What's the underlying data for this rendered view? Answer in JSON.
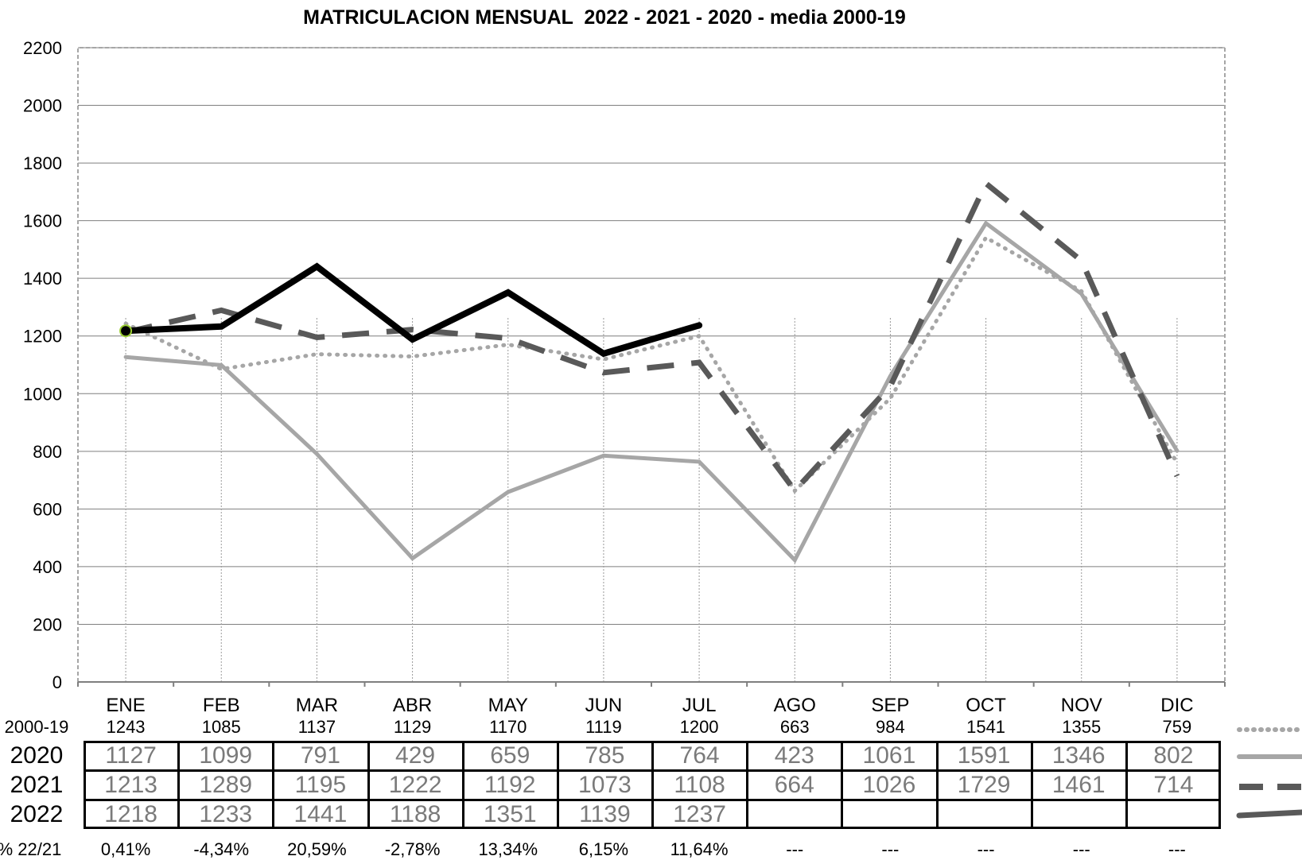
{
  "chart_data": {
    "type": "line",
    "title": "MATRICULACION MENSUAL  2022 - 2021 - 2020 - media 2000-19",
    "xlabel": "",
    "ylabel": "",
    "ylim": [
      0,
      2200
    ],
    "yticks": [
      "0",
      "200",
      "400",
      "600",
      "800",
      "1000",
      "1200",
      "1400",
      "1600",
      "1800",
      "2000",
      "2200"
    ],
    "grid": true,
    "categories": [
      "ENE",
      "FEB",
      "MAR",
      "ABR",
      "MAY",
      "JUN",
      "JUL",
      "AGO",
      "SEP",
      "OCT",
      "NOV",
      "DIC"
    ],
    "series": [
      {
        "name": "2000-19",
        "values": [
          1243,
          1085,
          1137,
          1129,
          1170,
          1119,
          1200,
          663,
          984,
          1541,
          1355,
          759
        ],
        "color": "#a6a6a6",
        "style": "dotted"
      },
      {
        "name": "2020",
        "values": [
          1127,
          1099,
          791,
          429,
          659,
          785,
          764,
          423,
          1061,
          1591,
          1346,
          802
        ],
        "color": "#a6a6a6",
        "style": "solid"
      },
      {
        "name": "2021",
        "values": [
          1213,
          1289,
          1195,
          1222,
          1192,
          1073,
          1108,
          664,
          1026,
          1729,
          1461,
          714
        ],
        "color": "#595959",
        "style": "dashed"
      },
      {
        "name": "2022",
        "values": [
          1218,
          1233,
          1441,
          1188,
          1351,
          1139,
          1237,
          null,
          null,
          null,
          null,
          null
        ],
        "color": "#000000",
        "style": "solid"
      }
    ],
    "table": {
      "pct_label": "% 22/21",
      "pct_values": [
        "0,41%",
        "-4,34%",
        "20,59%",
        "-2,78%",
        "13,34%",
        "6,15%",
        "11,64%",
        "---",
        "---",
        "---",
        "---",
        "---"
      ],
      "rows": [
        {
          "label": "2000-19",
          "values": [
            "1243",
            "1085",
            "1137",
            "1129",
            "1170",
            "1119",
            "1200",
            "663",
            "984",
            "1541",
            "1355",
            "759"
          ]
        },
        {
          "label": "2020",
          "values": [
            "1127",
            "1099",
            "791",
            "429",
            "659",
            "785",
            "764",
            "423",
            "1061",
            "1591",
            "1346",
            "802"
          ]
        },
        {
          "label": "2021",
          "values": [
            "1213",
            "1289",
            "1195",
            "1222",
            "1192",
            "1073",
            "1108",
            "664",
            "1026",
            "1729",
            "1461",
            "714"
          ]
        },
        {
          "label": "2022",
          "values": [
            "1218",
            "1233",
            "1441",
            "1188",
            "1351",
            "1139",
            "1237",
            "",
            "",
            "",
            "",
            ""
          ]
        }
      ]
    }
  }
}
